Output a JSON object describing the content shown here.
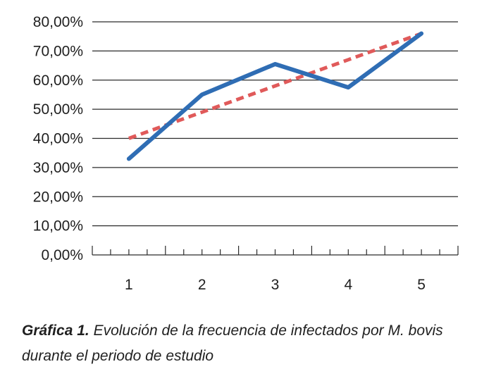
{
  "chart_data": {
    "type": "line",
    "categories": [
      "1",
      "2",
      "3",
      "4",
      "5"
    ],
    "series": [
      {
        "values": [
          33.0,
          55.0,
          65.5,
          57.5,
          76.0
        ],
        "color": "#2f6db4",
        "style": "solid"
      },
      {
        "values": [
          40.0,
          49.0,
          58.0,
          67.0,
          76.0
        ],
        "color": "#e05a5a",
        "style": "dashed",
        "kind": "trendline"
      }
    ],
    "ylim": [
      0,
      80
    ],
    "yticks": [
      "0,00%",
      "10,00%",
      "20,00%",
      "30,00%",
      "40,00%",
      "50,00%",
      "60,00%",
      "70,00%",
      "80,00%"
    ],
    "grid": true
  },
  "caption": {
    "lead": "Gráfica 1.",
    "text": " Evolución de la frecuencia de infectados por M. bovis",
    "line2": "durante el periodo de estudio"
  }
}
